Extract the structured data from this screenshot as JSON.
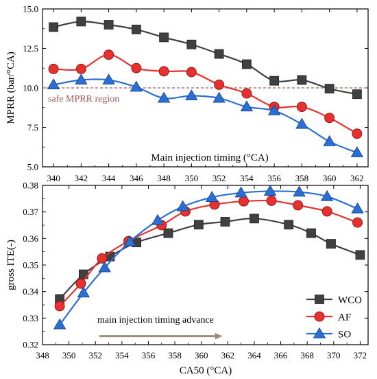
{
  "chart_data": [
    {
      "type": "line",
      "xlabel": "Main injection timing (°CA)",
      "ylabel": "MPRR (bar/°CA)",
      "xlim": [
        339.2,
        362.8
      ],
      "ylim": [
        5.0,
        15.0
      ],
      "xticks": [
        340,
        342,
        344,
        346,
        348,
        350,
        352,
        354,
        356,
        358,
        360,
        362
      ],
      "yticks": [
        5.0,
        7.5,
        10.0,
        12.5,
        15.0
      ],
      "x": [
        340,
        342,
        344,
        346,
        348,
        350,
        352,
        354,
        356,
        358,
        360,
        362
      ],
      "series": [
        {
          "name": "WCO",
          "color": "#404040",
          "marker": "square",
          "values": [
            13.85,
            14.2,
            14.0,
            13.7,
            13.2,
            12.75,
            12.15,
            11.5,
            10.45,
            10.5,
            9.95,
            9.6
          ]
        },
        {
          "name": "AF",
          "color": "#e8312e",
          "marker": "circle",
          "values": [
            11.2,
            11.2,
            12.1,
            11.25,
            11.05,
            11.0,
            10.2,
            9.65,
            8.8,
            8.8,
            8.1,
            7.1
          ]
        },
        {
          "name": "SO",
          "color": "#2b6fd6",
          "marker": "triangle",
          "values": [
            10.2,
            10.5,
            10.5,
            10.05,
            9.35,
            9.5,
            9.35,
            8.8,
            8.55,
            7.7,
            6.6,
            5.9
          ]
        }
      ],
      "reference_line": {
        "y": 10.0,
        "color": "#a05a5a",
        "style": "dashed"
      },
      "annotation": "safe MPRR region"
    },
    {
      "type": "line",
      "xlabel": "CA50 (°CA)",
      "ylabel": "gross ITE(-)",
      "xlim": [
        348,
        372.6
      ],
      "ylim": [
        0.32,
        0.38
      ],
      "xticks": [
        348,
        350,
        352,
        354,
        356,
        358,
        360,
        362,
        364,
        366,
        368,
        370,
        372
      ],
      "yticks": [
        0.32,
        0.33,
        0.34,
        0.35,
        0.36,
        0.37,
        0.38
      ],
      "series": [
        {
          "name": "WCO",
          "color": "#404040",
          "marker": "square",
          "x": [
            349.3,
            351.1,
            353.1,
            355.1,
            357.5,
            359.8,
            361.8,
            364.0,
            366.6,
            368.3,
            369.8,
            372.0
          ],
          "values": [
            0.3372,
            0.3465,
            0.3532,
            0.3585,
            0.362,
            0.3652,
            0.3663,
            0.3675,
            0.3652,
            0.362,
            0.358,
            0.3538
          ]
        },
        {
          "name": "AF",
          "color": "#e8312e",
          "marker": "circle",
          "x": [
            349.3,
            350.9,
            352.5,
            354.5,
            357.0,
            358.8,
            361.0,
            363.2,
            365.3,
            367.3,
            369.5,
            371.8
          ],
          "values": [
            0.3345,
            0.343,
            0.3525,
            0.359,
            0.365,
            0.3702,
            0.3728,
            0.374,
            0.3742,
            0.3725,
            0.3702,
            0.366
          ]
        },
        {
          "name": "SO",
          "color": "#2b6fd6",
          "marker": "triangle",
          "x": [
            349.3,
            351.1,
            352.7,
            354.6,
            356.7,
            358.6,
            360.8,
            363.0,
            365.2,
            367.4,
            369.5,
            371.8
          ],
          "values": [
            0.3275,
            0.3395,
            0.349,
            0.3588,
            0.3668,
            0.372,
            0.3755,
            0.3772,
            0.3778,
            0.3775,
            0.3758,
            0.3712
          ]
        }
      ],
      "legend": {
        "position": "bottom-right",
        "entries": [
          "WCO",
          "AF",
          "SO"
        ]
      },
      "annotation": "main injection timing advance",
      "arrow": {
        "color": "#a08a80",
        "direction": "right",
        "from_x": 352.3,
        "to_x": 361.5,
        "y": 0.3232
      }
    }
  ]
}
